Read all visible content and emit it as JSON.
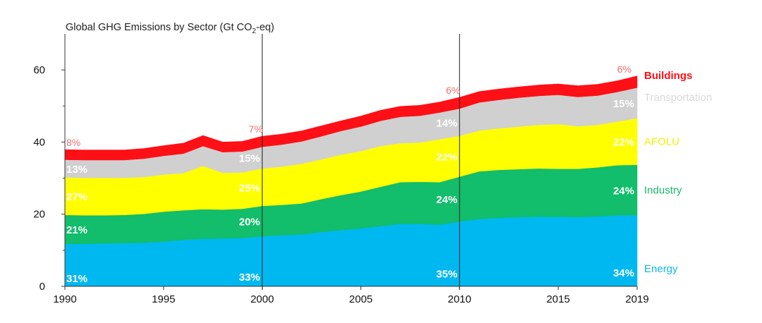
{
  "chart_data": {
    "type": "area",
    "stacked": true,
    "title": "Global GHG Emissions by Sector (Gt CO",
    "title_sub": "2",
    "title_end": "-eq)",
    "xlabel": "",
    "ylabel": "",
    "xlim": [
      1990,
      2019
    ],
    "ylim": [
      0,
      70
    ],
    "x_ticks": [
      1990,
      1995,
      2000,
      2005,
      2010,
      2015,
      2019
    ],
    "y_ticks": [
      0,
      20,
      40,
      60
    ],
    "reference_years": [
      2000,
      2010
    ],
    "x": [
      1990,
      1991,
      1992,
      1993,
      1994,
      1995,
      1996,
      1997,
      1998,
      1999,
      2000,
      2001,
      2002,
      2003,
      2004,
      2005,
      2006,
      2007,
      2008,
      2009,
      2010,
      2011,
      2012,
      2013,
      2014,
      2015,
      2016,
      2017,
      2018,
      2019
    ],
    "series": [
      {
        "name": "Energy",
        "color": "#00b8f0",
        "values": [
          11.8,
          11.8,
          11.9,
          12.0,
          12.1,
          12.4,
          12.9,
          13.2,
          13.3,
          13.4,
          13.9,
          14.2,
          14.4,
          15.1,
          15.6,
          16.1,
          16.7,
          17.3,
          17.3,
          17.1,
          18.0,
          18.7,
          19.0,
          19.2,
          19.3,
          19.3,
          19.2,
          19.4,
          19.7,
          19.7
        ]
      },
      {
        "name": "Industry",
        "color": "#12bd6b",
        "values": [
          8.0,
          7.9,
          7.8,
          7.8,
          8.0,
          8.3,
          8.2,
          8.2,
          8.0,
          8.1,
          8.4,
          8.4,
          8.6,
          9.1,
          9.7,
          10.2,
          10.9,
          11.6,
          11.7,
          11.8,
          12.4,
          13.2,
          13.3,
          13.3,
          13.4,
          13.3,
          13.4,
          13.6,
          13.9,
          14.0
        ]
      },
      {
        "name": "AFOLU",
        "color": "#ffff00",
        "values": [
          10.4,
          10.4,
          10.4,
          10.3,
          10.2,
          10.3,
          10.3,
          12.0,
          10.2,
          10.1,
          10.4,
          10.6,
          11.0,
          11.0,
          11.2,
          11.2,
          11.3,
          10.8,
          10.9,
          11.9,
          11.3,
          11.3,
          11.5,
          11.8,
          12.1,
          12.4,
          11.8,
          11.8,
          12.1,
          12.9
        ]
      },
      {
        "name": "Transportation",
        "color": "#d0d0d0",
        "values": [
          4.9,
          4.9,
          4.9,
          4.9,
          5.1,
          5.2,
          5.4,
          5.5,
          5.7,
          5.8,
          6.0,
          6.1,
          6.2,
          6.4,
          6.6,
          6.8,
          7.0,
          7.3,
          7.4,
          7.4,
          7.6,
          7.8,
          7.9,
          8.0,
          8.0,
          8.1,
          8.1,
          8.1,
          8.2,
          8.5
        ]
      },
      {
        "name": "Buildings",
        "color": "#ff0f16",
        "values": [
          2.8,
          2.8,
          2.8,
          2.8,
          2.8,
          2.8,
          2.9,
          2.9,
          2.8,
          2.8,
          2.9,
          2.9,
          2.9,
          2.9,
          2.8,
          2.9,
          2.9,
          2.9,
          2.9,
          2.9,
          3.1,
          3.0,
          3.0,
          3.0,
          3.0,
          3.0,
          3.1,
          3.1,
          3.1,
          3.2
        ]
      }
    ],
    "legend_labels": [
      {
        "name": "Buildings",
        "color": "#ff0f16",
        "bold": true
      },
      {
        "name": "Transportation",
        "color": "#d9d9d9",
        "bold": false
      },
      {
        "name": "AFOLU",
        "color": "#f2f200",
        "bold": false
      },
      {
        "name": "Industry",
        "color": "#17b86a",
        "bold": false
      },
      {
        "name": "Energy",
        "color": "#11b6e8",
        "bold": false
      }
    ],
    "share_labels": [
      {
        "year": 1990,
        "series": "Buildings",
        "text": "8%",
        "color": "#f07070"
      },
      {
        "year": 1990,
        "series": "Transportation",
        "text": "13%"
      },
      {
        "year": 1990,
        "series": "AFOLU",
        "text": "27%"
      },
      {
        "year": 1990,
        "series": "Industry",
        "text": "21%"
      },
      {
        "year": 1990,
        "series": "Energy",
        "text": "31%"
      },
      {
        "year": 2000,
        "series": "Buildings",
        "text": "7%",
        "color": "#f07070"
      },
      {
        "year": 2000,
        "series": "Transportation",
        "text": "15%"
      },
      {
        "year": 2000,
        "series": "AFOLU",
        "text": "25%"
      },
      {
        "year": 2000,
        "series": "Industry",
        "text": "20%"
      },
      {
        "year": 2000,
        "series": "Energy",
        "text": "33%"
      },
      {
        "year": 2010,
        "series": "Buildings",
        "text": "6%",
        "color": "#f07070"
      },
      {
        "year": 2010,
        "series": "Transportation",
        "text": "14%"
      },
      {
        "year": 2010,
        "series": "AFOLU",
        "text": "22%"
      },
      {
        "year": 2010,
        "series": "Industry",
        "text": "24%"
      },
      {
        "year": 2010,
        "series": "Energy",
        "text": "35%"
      },
      {
        "year": 2019,
        "series": "Buildings",
        "text": "6%",
        "color": "#f07070"
      },
      {
        "year": 2019,
        "series": "Transportation",
        "text": "15%"
      },
      {
        "year": 2019,
        "series": "AFOLU",
        "text": "22%"
      },
      {
        "year": 2019,
        "series": "Industry",
        "text": "24%"
      },
      {
        "year": 2019,
        "series": "Energy",
        "text": "34%"
      }
    ]
  }
}
